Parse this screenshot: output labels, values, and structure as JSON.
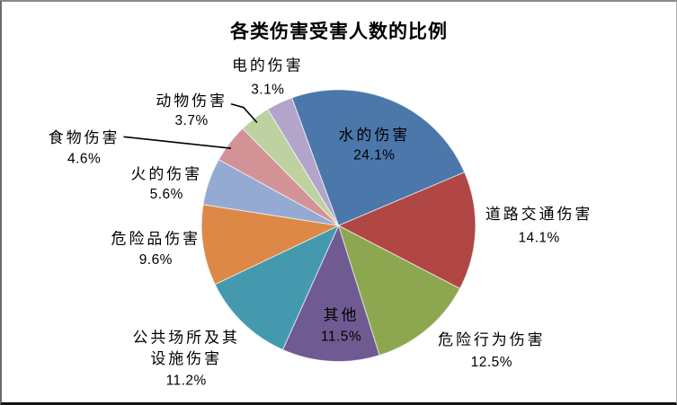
{
  "chart_data": {
    "type": "pie",
    "title": "各类伤害受害人数的比例",
    "unit": "%",
    "legend": "none",
    "direction": "clockwise",
    "start_angle_deg": -19.9,
    "background": "#ffffff",
    "label_text_color": "#000000",
    "categories": [
      "水的伤害",
      "道路交通伤害",
      "危险行为伤害",
      "其他",
      "公共场所及其设施伤害",
      "危险品伤害",
      "火的伤害",
      "食物伤害",
      "动物伤害",
      "电的伤害"
    ],
    "values": [
      24.1,
      14.1,
      12.5,
      11.5,
      11.2,
      9.6,
      5.6,
      4.6,
      3.7,
      3.1
    ],
    "slices": [
      {
        "name_lines": [
          "水的伤害"
        ],
        "value": 24.1,
        "pct_label": "24.1%",
        "color": "#4B77AB",
        "label_placement": "inside",
        "leader": false
      },
      {
        "name_lines": [
          "道路交通伤害"
        ],
        "value": 14.1,
        "pct_label": "14.1%",
        "color": "#B04744",
        "label_placement": "outside",
        "leader": false
      },
      {
        "name_lines": [
          "危险行为伤害"
        ],
        "value": 12.5,
        "pct_label": "12.5%",
        "color": "#8DA750",
        "label_placement": "outside",
        "leader": false
      },
      {
        "name_lines": [
          "其他"
        ],
        "value": 11.5,
        "pct_label": "11.5%",
        "color": "#6F5B92",
        "label_placement": "inside",
        "leader": false
      },
      {
        "name_lines": [
          "公共场所及其",
          "设施伤害"
        ],
        "value": 11.2,
        "pct_label": "11.2%",
        "color": "#4599AE",
        "label_placement": "outside",
        "leader": false
      },
      {
        "name_lines": [
          "危险品伤害"
        ],
        "value": 9.6,
        "pct_label": "9.6%",
        "color": "#DD8846",
        "label_placement": "outside",
        "leader": false
      },
      {
        "name_lines": [
          "火的伤害"
        ],
        "value": 5.6,
        "pct_label": "5.6%",
        "color": "#95AAD3",
        "label_placement": "outside",
        "leader": false
      },
      {
        "name_lines": [
          "食物伤害"
        ],
        "value": 4.6,
        "pct_label": "4.6%",
        "color": "#D39295",
        "label_placement": "outside",
        "leader": true
      },
      {
        "name_lines": [
          "动物伤害"
        ],
        "value": 3.7,
        "pct_label": "3.7%",
        "color": "#BDD2A0",
        "label_placement": "outside",
        "leader": true
      },
      {
        "name_lines": [
          "电的伤害"
        ],
        "value": 3.1,
        "pct_label": "3.1%",
        "color": "#B3A4CB",
        "label_placement": "outside",
        "leader": false
      }
    ]
  }
}
